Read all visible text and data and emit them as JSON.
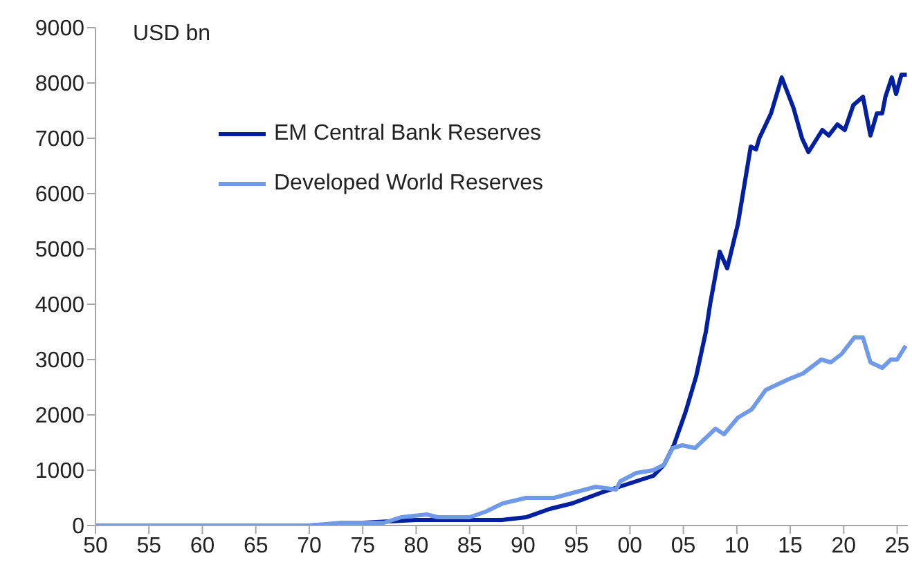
{
  "chart_data": {
    "type": "line",
    "ylabel": "USD bn",
    "xlim": [
      1950,
      2026
    ],
    "xticks": [
      {
        "value": 1950,
        "label": "50"
      },
      {
        "value": 1955,
        "label": "55"
      },
      {
        "value": 1960,
        "label": "60"
      },
      {
        "value": 1965,
        "label": "65"
      },
      {
        "value": 1970,
        "label": "70"
      },
      {
        "value": 1975,
        "label": "75"
      },
      {
        "value": 1980,
        "label": "80"
      },
      {
        "value": 1985,
        "label": "85"
      },
      {
        "value": 1990,
        "label": "90"
      },
      {
        "value": 1995,
        "label": "95"
      },
      {
        "value": 2000,
        "label": "00"
      },
      {
        "value": 2005,
        "label": "05"
      },
      {
        "value": 2010,
        "label": "10"
      },
      {
        "value": 2015,
        "label": "15"
      },
      {
        "value": 2020,
        "label": "20"
      },
      {
        "value": 2025,
        "label": "25"
      }
    ],
    "ylim": [
      0,
      9000
    ],
    "yticks": [
      0,
      1000,
      2000,
      3000,
      4000,
      5000,
      6000,
      7000,
      8000,
      9000
    ],
    "legend": "top left",
    "marker": "none",
    "line_style": "solid",
    "series": [
      {
        "name": "EM Central Bank Reserves",
        "color": "#00209f",
        "x": [
          1950,
          1970,
          1975,
          1980,
          1985,
          1988,
          1990.3,
          1992.5,
          1994.6,
          1997.4,
          1999,
          2000.6,
          2002.2,
          2003.2,
          2004.1,
          2005.2,
          2006.2,
          2007.1,
          2007.5,
          2008.4,
          2009.1,
          2010.1,
          2011.3,
          2011.8,
          2012.1,
          2013.2,
          2014.2,
          2015.3,
          2016.1,
          2016.7,
          2018,
          2018.6,
          2019.4,
          2020.1,
          2020.9,
          2021.8,
          2022.5,
          2023.1,
          2023.6,
          2023.9,
          2024.5,
          2024.9,
          2025.4,
          2025.9
        ],
        "values": [
          0,
          0,
          50,
          100,
          100,
          100,
          150,
          300,
          400,
          600,
          700,
          800,
          900,
          1100,
          1450,
          2050,
          2700,
          3500,
          4000,
          4950,
          4650,
          5450,
          6850,
          6800,
          7000,
          7450,
          8100,
          7550,
          7000,
          6750,
          7150,
          7050,
          7250,
          7150,
          7600,
          7750,
          7050,
          7450,
          7450,
          7750,
          8100,
          7800,
          8150,
          8150
        ]
      },
      {
        "name": "Developed World Reserves",
        "color": "#6f9ae8",
        "x": [
          1950,
          1965,
          1970,
          1973,
          1977,
          1978.6,
          1981,
          1982,
          1985,
          1986.5,
          1988.1,
          1990.3,
          1992.9,
          1996.8,
          1998.7,
          1999.1,
          2000.6,
          2002.2,
          2003.2,
          2004,
          2004.9,
          2006.1,
          2008,
          2008.8,
          2010.1,
          2011.4,
          2012.7,
          2014.9,
          2016.2,
          2017.9,
          2018.8,
          2019.8,
          2021,
          2021.8,
          2022.5,
          2023.6,
          2024.4,
          2025,
          2025.8
        ],
        "values": [
          0,
          0,
          0,
          50,
          50,
          150,
          200,
          150,
          150,
          250,
          400,
          500,
          500,
          700,
          650,
          800,
          950,
          1000,
          1100,
          1400,
          1450,
          1400,
          1750,
          1650,
          1950,
          2100,
          2450,
          2650,
          2750,
          3000,
          2950,
          3100,
          3400,
          3400,
          2950,
          2850,
          3000,
          3000,
          3250
        ]
      }
    ]
  }
}
